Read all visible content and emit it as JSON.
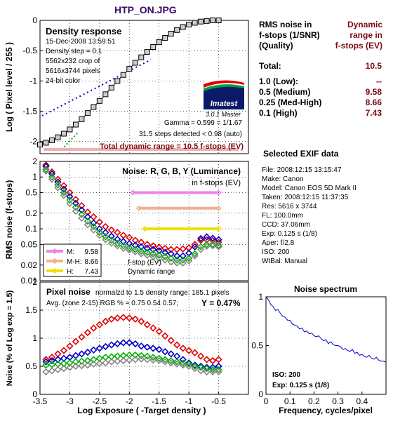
{
  "title": "HTP_ON.JPG",
  "colors": {
    "red": "#e00000",
    "green": "#00b400",
    "blue": "#0000cc",
    "gray": "#888888",
    "darkred": "#7a0a10",
    "medium": "#f080f0",
    "medhigh": "#f0b090",
    "high": "#f0e000"
  },
  "density": {
    "title": "Density response",
    "info": [
      "15-Dec-2008 13:59:51",
      "Density step = 0.1",
      "5562x232 crop of",
      "5616x3744 pixels",
      "24-bit color"
    ],
    "logo": "Imatest",
    "version": "3.0.1  Master",
    "gamma": "Gamma = 0.599 = 1/1.67",
    "steps": "31.5 steps detected < 0.98 (auto)",
    "total": "Total dynamic range = 10.5 f-stops (EV)",
    "ylabel": "Log ( Pixel level / 255 )",
    "yticks": [
      "0",
      "-0.5",
      "-1",
      "-1.5",
      "-2"
    ]
  },
  "noise": {
    "title": "Noise: R, G, B, Y (Luminance)",
    "subtitle": "in f-stops (EV)",
    "ylabel": "RMS noise (f-stops)",
    "yticks": [
      "2",
      "1",
      "0.5",
      "0.2",
      "0.1",
      "0.05",
      "0.02",
      "0.01"
    ],
    "legend": [
      {
        "label": "M:",
        "value": "9.58"
      },
      {
        "label": "M-H:",
        "value": "8.66"
      },
      {
        "label": "H:",
        "value": "7.43"
      }
    ],
    "note1": "f-stop (EV)",
    "note2": "Dynamic range"
  },
  "pixel": {
    "title": "Pixel noise",
    "line1": "normalzd to 1.5 density range: 185.1 pixels",
    "line2": "Avg. (zone 2-15) RGB % = 0.75  0.54  0.57;",
    "y": "Y = 0.47%",
    "ylabel": "Noise (% of Log exp = 1.5)",
    "yticks": [
      "2",
      "1.5",
      "1",
      "0.5",
      "0"
    ],
    "xlabel": "Log Exposure ( -Target density )",
    "xticks": [
      "-3.5",
      "-3",
      "-2.5",
      "-2",
      "-1.5",
      "-1",
      "-0.5"
    ]
  },
  "summary": {
    "header_left": [
      "RMS noise in",
      "f-stops (1/SNR)",
      "(Quality)"
    ],
    "header_right": [
      "Dynamic",
      "range in",
      "f-stops (EV)"
    ],
    "rows": [
      {
        "label": "Total:",
        "value": "10.5"
      },
      {
        "label": "1.0   (Low):",
        "value": "--"
      },
      {
        "label": "0.5   (Medium)",
        "value": "9.58"
      },
      {
        "label": "0.25 (Med-High)",
        "value": "8.66"
      },
      {
        "label": "0.1   (High)",
        "value": "7.43"
      }
    ]
  },
  "exif": {
    "title": "Selected EXIF data",
    "rows": [
      "File:  2008:12:15 13:15:47",
      "Make:  Canon",
      "Model: Canon EOS 5D Mark II",
      "Taken: 2008:12:15 11:37:35",
      "Res:   5616 x 3744",
      "FL:   100.0mm",
      "CCD:   37.06mm",
      "Exp:  0.125 s  (1/8)",
      "Aper:  f/2.8",
      "ISO:   200",
      "WtBal:  Manual"
    ]
  },
  "spectrum": {
    "title": "Noise spectrum",
    "iso": "ISO:  200",
    "exp": "Exp:  0.125 s  (1/8)",
    "xlabel": "Frequency, cycles/pixel",
    "yticks": [
      "1",
      "0.5",
      "0"
    ],
    "xticks": [
      "0",
      "0.1",
      "0.2",
      "0.3",
      "0.4"
    ]
  },
  "chart_data": [
    {
      "type": "line",
      "name": "density",
      "xlim": [
        -3.5,
        0
      ],
      "ylim": [
        -2.2,
        0
      ],
      "points": [
        [
          -3.5,
          -2.05
        ],
        [
          -3.4,
          -2.02
        ],
        [
          -3.3,
          -1.98
        ],
        [
          -3.2,
          -1.93
        ],
        [
          -3.1,
          -1.87
        ],
        [
          -3.0,
          -1.8
        ],
        [
          -2.9,
          -1.72
        ],
        [
          -2.8,
          -1.63
        ],
        [
          -2.7,
          -1.53
        ],
        [
          -2.6,
          -1.43
        ],
        [
          -2.5,
          -1.33
        ],
        [
          -2.4,
          -1.22
        ],
        [
          -2.3,
          -1.11
        ],
        [
          -2.2,
          -1.0
        ],
        [
          -2.1,
          -0.9
        ],
        [
          -2.0,
          -0.8
        ],
        [
          -1.9,
          -0.7
        ],
        [
          -1.8,
          -0.61
        ],
        [
          -1.7,
          -0.52
        ],
        [
          -1.6,
          -0.44
        ],
        [
          -1.5,
          -0.36
        ],
        [
          -1.4,
          -0.29
        ],
        [
          -1.3,
          -0.22
        ],
        [
          -1.2,
          -0.16
        ],
        [
          -1.1,
          -0.11
        ],
        [
          -1.0,
          -0.07
        ],
        [
          -0.9,
          -0.04
        ],
        [
          -0.8,
          -0.02
        ],
        [
          -0.7,
          -0.01
        ],
        [
          -0.6,
          0
        ],
        [
          -0.5,
          0
        ]
      ]
    },
    {
      "type": "scatter",
      "name": "rms_noise",
      "xlim": [
        -3.5,
        0
      ],
      "ylim": [
        0.01,
        2
      ],
      "yscale": "log",
      "x": [
        -3.4,
        -3.3,
        -3.2,
        -3.1,
        -3.0,
        -2.9,
        -2.8,
        -2.7,
        -2.6,
        -2.5,
        -2.4,
        -2.3,
        -2.2,
        -2.1,
        -2.0,
        -1.9,
        -1.8,
        -1.7,
        -1.6,
        -1.5,
        -1.4,
        -1.3,
        -1.2,
        -1.1,
        -1.0,
        -0.9,
        -0.8,
        -0.7,
        -0.6,
        -0.5
      ],
      "series": [
        {
          "color": "red",
          "values": [
            1.7,
            1.25,
            0.9,
            0.68,
            0.5,
            0.37,
            0.28,
            0.21,
            0.17,
            0.135,
            0.11,
            0.095,
            0.085,
            0.075,
            0.068,
            0.06,
            0.055,
            0.05,
            0.047,
            0.044,
            0.042,
            0.04,
            0.04,
            0.041,
            0.043,
            0.05,
            0.06,
            0.062,
            0.06,
            0.055
          ]
        },
        {
          "color": "blue",
          "values": [
            1.6,
            1.15,
            0.8,
            0.58,
            0.42,
            0.31,
            0.23,
            0.17,
            0.13,
            0.1,
            0.085,
            0.072,
            0.063,
            0.057,
            0.052,
            0.048,
            0.045,
            0.042,
            0.04,
            0.038,
            0.035,
            0.033,
            0.03,
            0.03,
            0.034,
            0.045,
            0.065,
            0.07,
            0.066,
            0.062
          ]
        },
        {
          "color": "green",
          "values": [
            1.4,
            1.0,
            0.7,
            0.5,
            0.36,
            0.26,
            0.19,
            0.14,
            0.11,
            0.085,
            0.07,
            0.06,
            0.052,
            0.047,
            0.043,
            0.04,
            0.037,
            0.035,
            0.033,
            0.031,
            0.029,
            0.027,
            0.025,
            0.025,
            0.027,
            0.033,
            0.045,
            0.05,
            0.05,
            0.048
          ]
        },
        {
          "color": "gray",
          "values": [
            1.3,
            0.9,
            0.62,
            0.44,
            0.31,
            0.22,
            0.16,
            0.12,
            0.095,
            0.075,
            0.062,
            0.053,
            0.047,
            0.042,
            0.039,
            0.036,
            0.033,
            0.031,
            0.029,
            0.027,
            0.025,
            0.023,
            0.022,
            0.022,
            0.024,
            0.03,
            0.04,
            0.046,
            0.047,
            0.045
          ]
        }
      ],
      "thresholds": [
        {
          "label": "M",
          "value": 0.5,
          "x_from": -1.94
        },
        {
          "label": "M-H",
          "value": 0.25,
          "x_from": -1.84
        },
        {
          "label": "H",
          "value": 0.1,
          "x_from": -1.74
        }
      ]
    },
    {
      "type": "scatter",
      "name": "pixel_noise",
      "xlim": [
        -3.5,
        0
      ],
      "ylim": [
        0,
        2
      ],
      "x": [
        -3.4,
        -3.3,
        -3.2,
        -3.1,
        -3.0,
        -2.9,
        -2.8,
        -2.7,
        -2.6,
        -2.5,
        -2.4,
        -2.3,
        -2.2,
        -2.1,
        -2.0,
        -1.9,
        -1.8,
        -1.7,
        -1.6,
        -1.5,
        -1.4,
        -1.3,
        -1.2,
        -1.1,
        -1.0,
        -0.9,
        -0.8,
        -0.7,
        -0.6,
        -0.5
      ],
      "series": [
        {
          "color": "red",
          "values": [
            0.62,
            0.66,
            0.72,
            0.78,
            0.86,
            0.94,
            1.02,
            1.1,
            1.18,
            1.24,
            1.3,
            1.34,
            1.36,
            1.37,
            1.36,
            1.34,
            1.3,
            1.24,
            1.18,
            1.12,
            1.04,
            0.96,
            0.88,
            0.82,
            0.78,
            0.74,
            0.68,
            0.62,
            0.6,
            0.62
          ]
        },
        {
          "color": "blue",
          "values": [
            0.58,
            0.6,
            0.62,
            0.64,
            0.66,
            0.69,
            0.72,
            0.75,
            0.79,
            0.82,
            0.85,
            0.88,
            0.9,
            0.92,
            0.92,
            0.9,
            0.86,
            0.84,
            0.82,
            0.8,
            0.76,
            0.72,
            0.68,
            0.62,
            0.56,
            0.52,
            0.5,
            0.48,
            0.48,
            0.5
          ]
        },
        {
          "color": "green",
          "values": [
            0.52,
            0.53,
            0.54,
            0.55,
            0.56,
            0.58,
            0.59,
            0.6,
            0.62,
            0.64,
            0.66,
            0.67,
            0.68,
            0.69,
            0.7,
            0.7,
            0.69,
            0.68,
            0.66,
            0.64,
            0.62,
            0.6,
            0.58,
            0.56,
            0.54,
            0.5,
            0.48,
            0.46,
            0.44,
            0.44
          ]
        },
        {
          "color": "gray",
          "values": [
            0.4,
            0.42,
            0.44,
            0.46,
            0.48,
            0.5,
            0.51,
            0.52,
            0.54,
            0.55,
            0.56,
            0.58,
            0.59,
            0.6,
            0.61,
            0.62,
            0.63,
            0.62,
            0.61,
            0.6,
            0.58,
            0.56,
            0.54,
            0.52,
            0.5,
            0.46,
            0.42,
            0.4,
            0.4,
            0.4
          ]
        }
      ]
    },
    {
      "type": "line",
      "name": "noise_spectrum",
      "xlim": [
        0,
        0.5
      ],
      "ylim": [
        0,
        1
      ],
      "x": [
        0,
        0.01,
        0.02,
        0.03,
        0.04,
        0.05,
        0.06,
        0.07,
        0.08,
        0.09,
        0.1,
        0.11,
        0.12,
        0.13,
        0.14,
        0.15,
        0.16,
        0.17,
        0.18,
        0.19,
        0.2,
        0.21,
        0.22,
        0.23,
        0.24,
        0.25,
        0.26,
        0.27,
        0.28,
        0.29,
        0.3,
        0.31,
        0.32,
        0.33,
        0.34,
        0.35,
        0.36,
        0.37,
        0.38,
        0.39,
        0.4,
        0.41,
        0.42,
        0.43,
        0.44,
        0.45,
        0.46,
        0.47,
        0.48,
        0.49,
        0.5
      ],
      "values": [
        1.0,
        0.97,
        0.92,
        0.9,
        0.86,
        0.87,
        0.83,
        0.8,
        0.79,
        0.76,
        0.76,
        0.72,
        0.71,
        0.7,
        0.67,
        0.68,
        0.64,
        0.65,
        0.62,
        0.63,
        0.6,
        0.59,
        0.6,
        0.57,
        0.55,
        0.56,
        0.52,
        0.54,
        0.51,
        0.5,
        0.5,
        0.49,
        0.46,
        0.47,
        0.45,
        0.44,
        0.46,
        0.42,
        0.43,
        0.4,
        0.41,
        0.39,
        0.38,
        0.4,
        0.37,
        0.36,
        0.38,
        0.35,
        0.34,
        0.34,
        0.33
      ]
    }
  ]
}
